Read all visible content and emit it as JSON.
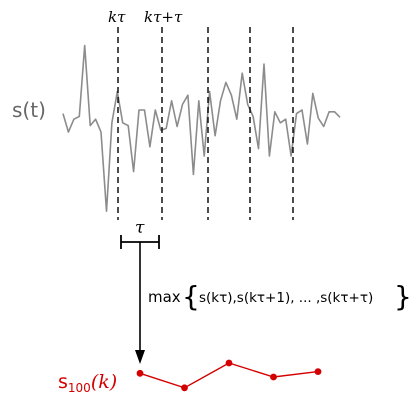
{
  "signal": {
    "label": "s(t)",
    "color": "#8c8c8c",
    "values": [
      0.08,
      -0.12,
      0.02,
      0.05,
      0.82,
      -0.05,
      0.02,
      -0.12,
      -0.98,
      -0.02,
      0.32,
      -0.02,
      -0.05,
      -0.55,
      0.12,
      0.12,
      -0.28,
      0.12,
      -0.1,
      -0.08,
      0.22,
      -0.06,
      0.18,
      0.28,
      -0.58,
      0.22,
      -0.38,
      0.32,
      -0.16,
      0.22,
      0.42,
      0.28,
      0.02,
      0.52,
      0.18,
      0.05,
      -0.3,
      0.62,
      -0.38,
      0.1,
      -0.02,
      0.02,
      -0.38,
      0.08,
      0.12,
      -0.25,
      0.3,
      0.03,
      -0.06,
      0.1,
      0.1,
      0.04
    ]
  },
  "window_lines": {
    "labels": [
      "kτ",
      "kτ+τ"
    ],
    "count": 5
  },
  "tau_bracket": {
    "label": "τ"
  },
  "operation": {
    "label": "max",
    "sequence": [
      "s(kτ)",
      "s(kτ+1)",
      "...",
      "s(kτ+τ)"
    ]
  },
  "output": {
    "label": "s",
    "subscript": "100",
    "argument": "(k)",
    "color": "#d40000",
    "values": [
      0.62,
      0.08,
      1.0,
      0.48,
      0.68
    ]
  }
}
